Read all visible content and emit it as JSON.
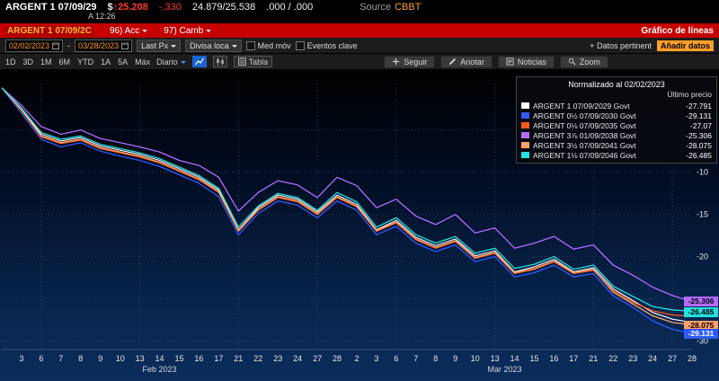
{
  "quote_bar": {
    "ticker": "ARGENT 1 07/09/29",
    "currency_symbol": "$",
    "arrow": "↑",
    "price": "25.208",
    "change": "-.330",
    "bid_ask": "24.879/25.538",
    "yield_pair": ".000 / .000",
    "asof": "A 12:26",
    "source_label": "Source",
    "source_value": "CBBT"
  },
  "title_bar": {
    "security": "ARGENT 1 07/09/2C",
    "action_96": "96) Acc",
    "action_97": "97) Camb",
    "screen_title": "Gráfico de líneas"
  },
  "toolbar": {
    "date_from": "02/02/2023",
    "date_to": "03/28/2023",
    "separator": "-",
    "px_type": "Last Px",
    "currency": "Divisa loca",
    "checkbox_1": "Med móv",
    "checkbox_2": "Eventos clave",
    "related_label": "+ Datos pertinent",
    "add_data_label": "Añadir datos"
  },
  "period_bar": {
    "ranges": [
      "1D",
      "3D",
      "1M",
      "6M",
      "YTD",
      "1A",
      "5A",
      "Máx"
    ],
    "frequency": "Diario",
    "table_label": "Tabla",
    "actions": [
      {
        "label": "Seguir",
        "icon": "plus-icon"
      },
      {
        "label": "Anotar",
        "icon": "pencil-icon"
      },
      {
        "label": "Noticias",
        "icon": "news-icon"
      },
      {
        "label": "Zoom",
        "icon": "magnifier-icon"
      }
    ]
  },
  "legend": {
    "title": "Normalizado al 02/02/2023",
    "subtitle": "Último precio"
  },
  "chart_data": {
    "type": "line",
    "title": "Normalizado al 02/02/2023",
    "ylim": [
      -31,
      0.5
    ],
    "y_gridlines": [
      -5,
      -10,
      -15,
      -20,
      -25,
      -30
    ],
    "y_axis_labels": [
      "-10",
      "-15",
      "-20",
      "-30"
    ],
    "y_axis_values": [
      -10,
      -15,
      -20,
      -30
    ],
    "x_tick_labels": [
      "",
      "3",
      "6",
      "7",
      "8",
      "9",
      "10",
      "13",
      "14",
      "15",
      "16",
      "17",
      "21",
      "22",
      "23",
      "24",
      "27",
      "28",
      "2",
      "3",
      "6",
      "7",
      "8",
      "9",
      "10",
      "13",
      "14",
      "15",
      "16",
      "17",
      "21",
      "22",
      "23",
      "24",
      "27",
      "28"
    ],
    "x_gridline_indices": [
      2,
      7,
      12,
      16,
      20,
      25,
      30,
      34
    ],
    "month_labels": [
      {
        "label": "Feb 2023",
        "index": 8
      },
      {
        "label": "Mar 2023",
        "index": 25.5
      }
    ],
    "series": [
      {
        "name": "ARGENT 1 07/09/2029 Govt",
        "color": "#ffffff",
        "last_price_label": "-27.791",
        "values": [
          0,
          -2.5,
          -5.5,
          -6.3,
          -5.9,
          -6.9,
          -7.4,
          -7.9,
          -8.6,
          -9.6,
          -10.6,
          -12.1,
          -16.8,
          -14.2,
          -12.7,
          -13.2,
          -14.7,
          -12.7,
          -13.8,
          -16.8,
          -15.7,
          -17.7,
          -18.7,
          -17.9,
          -19.9,
          -19.3,
          -21.8,
          -21.2,
          -20.3,
          -21.8,
          -21.3,
          -23.8,
          -25.2,
          -26.6,
          -27.4,
          -27.791
        ]
      },
      {
        "name": "ARGENT 0½ 07/09/2030 Govt",
        "color": "#2d5bff",
        "last_price_label": "-29.131",
        "values": [
          0,
          -3.0,
          -6.1,
          -7.0,
          -6.5,
          -7.5,
          -8.1,
          -8.6,
          -9.3,
          -10.3,
          -11.3,
          -12.9,
          -17.4,
          -14.9,
          -13.4,
          -13.9,
          -15.4,
          -13.4,
          -14.5,
          -17.4,
          -16.4,
          -18.4,
          -19.4,
          -18.6,
          -20.6,
          -20.0,
          -22.4,
          -21.9,
          -21.0,
          -22.4,
          -22.0,
          -24.6,
          -26.0,
          -27.6,
          -28.6,
          -29.131
        ]
      },
      {
        "name": "ARGENT 0⅛ 07/09/2035 Govt",
        "color": "#ff5a1e",
        "last_price_label": "-27.07",
        "values": [
          0,
          -2.7,
          -5.8,
          -6.6,
          -6.2,
          -7.2,
          -7.7,
          -8.2,
          -8.9,
          -9.9,
          -10.9,
          -12.4,
          -17.0,
          -14.5,
          -13.0,
          -13.5,
          -15.0,
          -13.0,
          -14.1,
          -17.0,
          -16.0,
          -18.0,
          -19.0,
          -18.2,
          -20.2,
          -19.6,
          -22.0,
          -21.5,
          -20.6,
          -22.0,
          -21.6,
          -24.0,
          -25.4,
          -26.4,
          -26.9,
          -27.07
        ]
      },
      {
        "name": "ARGENT 3⅞ 01/09/2038 Govt",
        "color": "#b36bff",
        "last_price_label": "-25.306",
        "values": [
          0,
          -2.1,
          -4.6,
          -5.5,
          -5.0,
          -6.0,
          -6.5,
          -7.0,
          -7.6,
          -8.6,
          -9.2,
          -10.6,
          -14.6,
          -12.4,
          -11.0,
          -11.5,
          -13.0,
          -10.6,
          -11.6,
          -14.2,
          -13.2,
          -15.2,
          -16.2,
          -15.0,
          -17.2,
          -16.6,
          -19.0,
          -18.4,
          -17.6,
          -19.1,
          -18.6,
          -21.0,
          -22.2,
          -23.6,
          -24.6,
          -25.306
        ]
      },
      {
        "name": "ARGENT 3½ 07/09/2041 Govt",
        "color": "#ffa069",
        "last_price_label": "-28.075",
        "values": [
          0,
          -2.6,
          -5.7,
          -6.5,
          -6.1,
          -7.1,
          -7.6,
          -8.1,
          -8.8,
          -9.8,
          -10.8,
          -12.3,
          -16.9,
          -14.4,
          -12.9,
          -13.4,
          -14.9,
          -12.9,
          -14.0,
          -16.9,
          -15.9,
          -17.9,
          -18.9,
          -18.1,
          -20.1,
          -19.5,
          -21.9,
          -21.4,
          -20.5,
          -21.9,
          -21.5,
          -24.2,
          -25.6,
          -27.0,
          -27.8,
          -28.075
        ]
      },
      {
        "name": "ARGENT 1⅛ 07/09/2046 Govt",
        "color": "#25e0e0",
        "last_price_label": "-26.485",
        "values": [
          0,
          -2.4,
          -5.3,
          -6.1,
          -5.7,
          -6.7,
          -7.2,
          -7.7,
          -8.4,
          -9.4,
          -10.4,
          -11.9,
          -16.5,
          -14.0,
          -12.5,
          -13.0,
          -14.5,
          -12.4,
          -13.5,
          -16.5,
          -15.4,
          -17.4,
          -18.4,
          -17.6,
          -19.6,
          -19.0,
          -21.4,
          -20.9,
          -20.0,
          -21.5,
          -21.0,
          -23.5,
          -24.7,
          -25.9,
          -26.3,
          -26.485
        ]
      }
    ],
    "badges": [
      {
        "value": -25.306,
        "label": "-25.306",
        "bg": "#b36bff",
        "fg": "#000000"
      },
      {
        "value": -26.485,
        "label": "-26.485",
        "bg": "#25e0e0",
        "fg": "#000000"
      },
      {
        "value": -28.075,
        "label": "-28.075",
        "bg": "#ffa069",
        "fg": "#000000"
      },
      {
        "value": -29.131,
        "label": "-29.131",
        "bg": "#2d5bff",
        "fg": "#ffffff"
      }
    ]
  }
}
